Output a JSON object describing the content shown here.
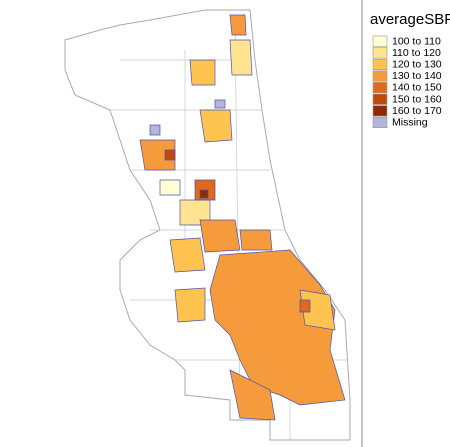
{
  "legend": {
    "title": "averageSBP",
    "items": [
      {
        "label": "100 to 110",
        "color": "#ffffd4"
      },
      {
        "label": "110 to 120",
        "color": "#fee391"
      },
      {
        "label": "120 to 130",
        "color": "#fec44f"
      },
      {
        "label": "130 to 140",
        "color": "#f59b3c"
      },
      {
        "label": "140 to 150",
        "color": "#e06a1a"
      },
      {
        "label": "150 to 160",
        "color": "#c04a08"
      },
      {
        "label": "160 to 170",
        "color": "#8c2d04"
      },
      {
        "label": "Missing",
        "color": "#b4b4dc"
      }
    ]
  }
}
